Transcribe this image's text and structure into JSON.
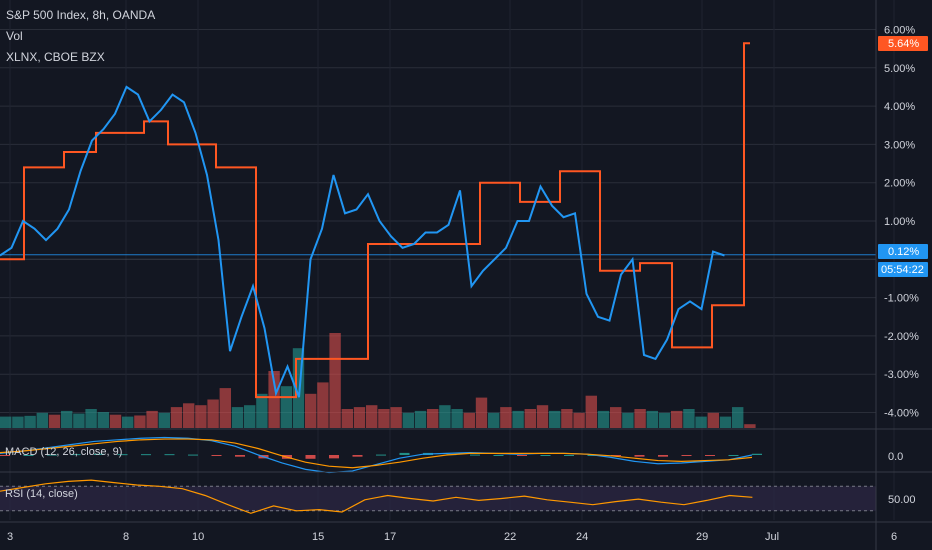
{
  "legend": {
    "main": "S&P 500 Index, 8h, OANDA",
    "vol": "Vol",
    "compare": "XLNX, CBOE BZX"
  },
  "panes": {
    "macd_label": "MACD (12, 26, close, 9)",
    "rsi_label": "RSI (14, close)",
    "macd_tick": "0.0",
    "rsi_tick": "50.00"
  },
  "badges": {
    "xlnx_value": "5.64%",
    "spx_value": "0.12%",
    "countdown": "05:54:22"
  },
  "colors": {
    "background": "#131722",
    "spx": "#2196f3",
    "xlnx": "#ff5722",
    "vol_up": "#26a69a",
    "vol_down": "#ef5350",
    "macd_line": "#2196f3",
    "signal_line": "#ff9800",
    "rsi_line": "#ff9800",
    "rsi_band": "#2a2541"
  },
  "chart_data": {
    "type": "line",
    "y_unit": "%",
    "ylim": [
      -4.6,
      6.2
    ],
    "y_ticks": [
      "6.00%",
      "5.00%",
      "4.00%",
      "3.00%",
      "2.00%",
      "1.00%",
      "-1.00%",
      "-2.00%",
      "-3.00%",
      "-4.00%"
    ],
    "y_tick_values": [
      6,
      5,
      4,
      3,
      2,
      1,
      -1,
      -2,
      -3,
      -4
    ],
    "x_tick_labels": [
      "3",
      "8",
      "10",
      "15",
      "17",
      "22",
      "24",
      "29",
      "Jul",
      "6"
    ],
    "x_tick_index": [
      0,
      15,
      24,
      39,
      48,
      63,
      72,
      87,
      96,
      111
    ],
    "series": [
      {
        "name": "S&P 500 Index",
        "values": [
          0.1,
          0.3,
          1.0,
          0.8,
          0.5,
          0.8,
          1.3,
          2.3,
          3.1,
          3.4,
          3.8,
          4.5,
          4.3,
          3.6,
          3.9,
          4.3,
          4.1,
          3.3,
          2.2,
          0.5,
          -2.4,
          -1.5,
          -0.7,
          -1.8,
          -3.5,
          -2.8,
          -3.6,
          0.0,
          0.8,
          2.2,
          1.2,
          1.3,
          1.7,
          1.0,
          0.6,
          0.3,
          0.4,
          0.7,
          0.7,
          0.9,
          1.8,
          -0.7,
          -0.3,
          0.0,
          0.3,
          1.0,
          1.0,
          1.9,
          1.4,
          1.1,
          1.2,
          -0.9,
          -1.5,
          -1.6,
          -0.4,
          0.0,
          -2.5,
          -2.6,
          -2.1,
          -1.3,
          -1.1,
          -1.3,
          0.2,
          0.1
        ],
        "spacing": 11.5,
        "start_index": 0
      },
      {
        "name": "XLNX",
        "steps": [
          [
            0,
            0
          ],
          [
            3,
            2.4
          ],
          [
            8,
            2.8
          ],
          [
            12,
            3.3
          ],
          [
            18,
            3.6
          ],
          [
            21,
            3.0
          ],
          [
            27,
            2.4
          ],
          [
            32,
            -3.6
          ],
          [
            37,
            -2.6
          ],
          [
            46,
            0.4
          ],
          [
            60,
            2.0
          ],
          [
            65,
            1.5
          ],
          [
            70,
            2.3
          ],
          [
            75,
            -0.3
          ],
          [
            80,
            -0.1
          ],
          [
            84,
            -2.3
          ],
          [
            89,
            -1.2
          ],
          [
            93,
            5.64
          ]
        ]
      }
    ],
    "volume": [
      {
        "i": 0,
        "v": 0.3,
        "up": true
      },
      {
        "i": 1,
        "v": 0.3,
        "up": true
      },
      {
        "i": 2,
        "v": 0.32,
        "up": true
      },
      {
        "i": 3,
        "v": 0.4,
        "up": true
      },
      {
        "i": 4,
        "v": 0.35,
        "up": false
      },
      {
        "i": 5,
        "v": 0.45,
        "up": true
      },
      {
        "i": 6,
        "v": 0.38,
        "up": true
      },
      {
        "i": 7,
        "v": 0.5,
        "up": true
      },
      {
        "i": 8,
        "v": 0.42,
        "up": true
      },
      {
        "i": 9,
        "v": 0.35,
        "up": false
      },
      {
        "i": 10,
        "v": 0.3,
        "up": true
      },
      {
        "i": 11,
        "v": 0.33,
        "up": false
      },
      {
        "i": 12,
        "v": 0.45,
        "up": false
      },
      {
        "i": 13,
        "v": 0.4,
        "up": true
      },
      {
        "i": 14,
        "v": 0.55,
        "up": false
      },
      {
        "i": 15,
        "v": 0.65,
        "up": false
      },
      {
        "i": 16,
        "v": 0.6,
        "up": false
      },
      {
        "i": 17,
        "v": 0.75,
        "up": false
      },
      {
        "i": 18,
        "v": 1.05,
        "up": false
      },
      {
        "i": 19,
        "v": 0.55,
        "up": true
      },
      {
        "i": 20,
        "v": 0.6,
        "up": true
      },
      {
        "i": 21,
        "v": 0.9,
        "up": true
      },
      {
        "i": 22,
        "v": 1.5,
        "up": false
      },
      {
        "i": 23,
        "v": 1.1,
        "up": true
      },
      {
        "i": 24,
        "v": 2.1,
        "up": true
      },
      {
        "i": 25,
        "v": 0.9,
        "up": false
      },
      {
        "i": 26,
        "v": 1.2,
        "up": false
      },
      {
        "i": 27,
        "v": 2.5,
        "up": false
      },
      {
        "i": 28,
        "v": 0.5,
        "up": false
      },
      {
        "i": 29,
        "v": 0.55,
        "up": false
      },
      {
        "i": 30,
        "v": 0.6,
        "up": false
      },
      {
        "i": 31,
        "v": 0.5,
        "up": false
      },
      {
        "i": 32,
        "v": 0.55,
        "up": false
      },
      {
        "i": 33,
        "v": 0.4,
        "up": true
      },
      {
        "i": 34,
        "v": 0.45,
        "up": true
      },
      {
        "i": 35,
        "v": 0.5,
        "up": false
      },
      {
        "i": 36,
        "v": 0.6,
        "up": true
      },
      {
        "i": 37,
        "v": 0.5,
        "up": true
      },
      {
        "i": 38,
        "v": 0.4,
        "up": false
      },
      {
        "i": 39,
        "v": 0.8,
        "up": false
      },
      {
        "i": 40,
        "v": 0.4,
        "up": true
      },
      {
        "i": 41,
        "v": 0.55,
        "up": false
      },
      {
        "i": 42,
        "v": 0.45,
        "up": true
      },
      {
        "i": 43,
        "v": 0.5,
        "up": false
      },
      {
        "i": 44,
        "v": 0.6,
        "up": false
      },
      {
        "i": 45,
        "v": 0.45,
        "up": true
      },
      {
        "i": 46,
        "v": 0.5,
        "up": false
      },
      {
        "i": 47,
        "v": 0.4,
        "up": false
      },
      {
        "i": 48,
        "v": 0.85,
        "up": false
      },
      {
        "i": 49,
        "v": 0.45,
        "up": true
      },
      {
        "i": 50,
        "v": 0.55,
        "up": false
      },
      {
        "i": 51,
        "v": 0.4,
        "up": true
      },
      {
        "i": 52,
        "v": 0.5,
        "up": false
      },
      {
        "i": 53,
        "v": 0.45,
        "up": true
      },
      {
        "i": 54,
        "v": 0.4,
        "up": true
      },
      {
        "i": 55,
        "v": 0.45,
        "up": false
      },
      {
        "i": 56,
        "v": 0.5,
        "up": true
      },
      {
        "i": 57,
        "v": 0.3,
        "up": true
      },
      {
        "i": 58,
        "v": 0.4,
        "up": false
      },
      {
        "i": 59,
        "v": 0.3,
        "up": true
      },
      {
        "i": 60,
        "v": 0.55,
        "up": true
      },
      {
        "i": 61,
        "v": 0.1,
        "up": false
      }
    ],
    "macd": {
      "zero_label": "0.0",
      "macd_line": [
        0.2,
        0.5,
        0.9,
        1.3,
        1.7,
        1.9,
        2.1,
        2.2,
        2.1,
        1.8,
        1.1,
        0.0,
        -1.0,
        -1.8,
        -2.2,
        -2.0,
        -1.2,
        -0.4,
        0.1,
        0.2,
        0.3,
        0.2,
        0.1,
        0.2,
        0.2,
        0.1,
        -0.3,
        -0.8,
        -1.1,
        -1.0,
        -0.8,
        -0.6,
        0.0
      ],
      "signal_line": [
        0.3,
        0.5,
        0.8,
        1.1,
        1.4,
        1.7,
        1.9,
        2.0,
        2.0,
        1.9,
        1.5,
        0.8,
        -0.1,
        -0.9,
        -1.4,
        -1.6,
        -1.3,
        -0.9,
        -0.4,
        0.0,
        0.2,
        0.2,
        0.2,
        0.2,
        0.2,
        0.1,
        -0.1,
        -0.4,
        -0.7,
        -0.8,
        -0.7,
        -0.6,
        -0.3
      ],
      "histogram": [
        -0.1,
        0.0,
        0.1,
        0.2,
        0.3,
        0.2,
        0.2,
        0.2,
        0.1,
        -0.1,
        -0.4,
        -0.8,
        -0.9,
        -0.9,
        -0.8,
        -0.4,
        0.1,
        0.5,
        0.5,
        0.2,
        0.1,
        0.0,
        -0.1,
        0.0,
        0.0,
        0.0,
        -0.2,
        -0.4,
        -0.4,
        -0.2,
        -0.1,
        0.0,
        0.3
      ]
    },
    "rsi": {
      "tick_label": "50.00",
      "band": [
        30,
        70
      ],
      "ylim": [
        15,
        90
      ],
      "values": [
        62,
        68,
        74,
        78,
        80,
        76,
        72,
        70,
        66,
        55,
        40,
        26,
        38,
        30,
        32,
        28,
        48,
        55,
        50,
        46,
        52,
        47,
        50,
        54,
        48,
        44,
        40,
        45,
        49,
        44,
        40,
        47,
        55,
        52
      ]
    }
  }
}
